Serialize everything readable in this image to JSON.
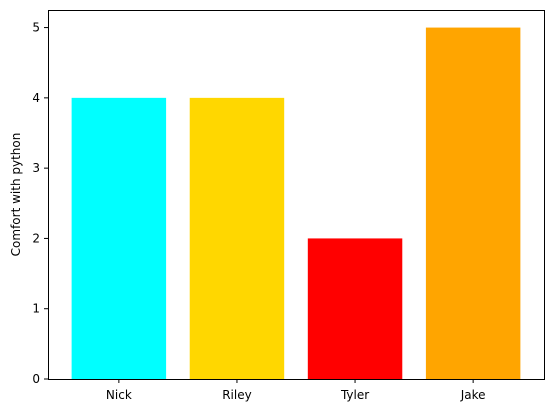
{
  "chart_data": {
    "type": "bar",
    "title": "",
    "xlabel": "",
    "ylabel": "Comfort with python",
    "categories": [
      "Nick",
      "Riley",
      "Tyler",
      "Jake"
    ],
    "values": [
      4,
      4,
      2,
      5
    ],
    "colors": [
      "#00ffff",
      "#ffd700",
      "#ff0000",
      "#ffa500"
    ],
    "ylim": [
      0,
      5.25
    ],
    "yticks": [
      0,
      1,
      2,
      3,
      4,
      5
    ],
    "ytick_labels": [
      "0",
      "1",
      "2",
      "3",
      "4",
      "5"
    ],
    "grid": false,
    "legend": "none"
  }
}
